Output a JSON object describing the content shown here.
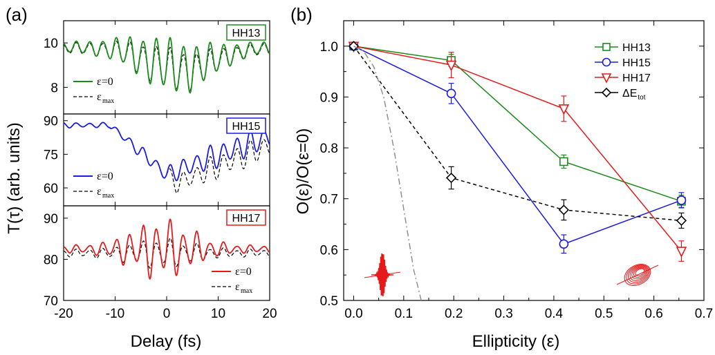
{
  "panel_a": {
    "label": "(a)",
    "ylabel": "T(τ) (arb. units)",
    "xlabel": "Delay (fs)",
    "x_ticks": [
      "-20",
      "-10",
      "0",
      "10",
      "20"
    ],
    "subpanels": [
      {
        "tag": "HH13",
        "tag_color": "#1a8a1a",
        "y_ticks": [
          "10",
          "8"
        ],
        "legend_solid": "ε=0",
        "legend_dashed": "ε",
        "legend_dashed_sub": "max"
      },
      {
        "tag": "HH15",
        "tag_color": "#1a1ae6",
        "y_ticks": [
          "90",
          "75",
          "60"
        ],
        "legend_solid": "ε=0",
        "legend_dashed": "ε",
        "legend_dashed_sub": "max"
      },
      {
        "tag": "HH17",
        "tag_color": "#e61a1a",
        "y_ticks": [
          "90",
          "80",
          "70"
        ],
        "legend_solid": "ε=0",
        "legend_dashed": "ε",
        "legend_dashed_sub": "max"
      }
    ]
  },
  "panel_b": {
    "label": "(b)",
    "ylabel": "O(ε)/O(ε=0)",
    "xlabel": "Ellipticity (ε)",
    "legend": [
      {
        "name": "HH13",
        "marker": "square",
        "color": "#1a8a1a"
      },
      {
        "name": "HH15",
        "marker": "circle",
        "color": "#1a1ae6"
      },
      {
        "name": "HH17",
        "marker": "triangle",
        "color": "#e61a1a"
      },
      {
        "name": "ΔE",
        "sub": "tot",
        "marker": "diamond",
        "color": "#000000"
      }
    ]
  },
  "chart_data": [
    {
      "type": "line",
      "panel": "(a) HH13",
      "xlabel": "Delay (fs)",
      "ylabel": "T(τ) (arb. units)",
      "xlim": [
        -20,
        20
      ],
      "ylim": [
        6.8,
        11.0
      ],
      "series": [
        {
          "name": "ε=0",
          "color": "#1a8a1a",
          "style": "solid",
          "baseline": 9.8,
          "dip_depth": 0.9,
          "dip_center": 3,
          "dip_width": 9,
          "oscillation_amplitude_max": 1.3,
          "oscillation_period_fs": 2.6
        },
        {
          "name": "εmax",
          "color": "#000000",
          "style": "dashed",
          "baseline": 9.75,
          "dip_depth": 1.0,
          "dip_center": 3,
          "dip_width": 9,
          "oscillation_amplitude_max": 1.0,
          "oscillation_period_fs": 2.6
        }
      ]
    },
    {
      "type": "line",
      "panel": "(a) HH15",
      "xlabel": "Delay (fs)",
      "ylabel": "T(τ) (arb. units)",
      "xlim": [
        -20,
        20
      ],
      "ylim": [
        52,
        93
      ],
      "series": [
        {
          "name": "ε=0",
          "color": "#1a1ae6",
          "style": "solid",
          "start": 88,
          "minimum": 66,
          "minimum_at": 0,
          "end": 83,
          "oscillation_amplitude_max": 6,
          "oscillation_period_fs": 2.6
        },
        {
          "name": "εmax",
          "color": "#000000",
          "style": "dashed",
          "start": 88,
          "minimum": 62,
          "minimum_at": 2,
          "end": 79,
          "oscillation_amplitude_max": 6,
          "oscillation_period_fs": 2.6
        }
      ]
    },
    {
      "type": "line",
      "panel": "(a) HH17",
      "xlabel": "Delay (fs)",
      "ylabel": "T(τ) (arb. units)",
      "xlim": [
        -20,
        20
      ],
      "ylim": [
        70,
        93
      ],
      "series": [
        {
          "name": "ε=0",
          "color": "#e61a1a",
          "style": "solid",
          "baseline": 82.5,
          "oscillation_amplitude_max": 8,
          "oscillation_period_fs": 2.6
        },
        {
          "name": "εmax",
          "color": "#000000",
          "style": "dashed",
          "baseline": 81.5,
          "oscillation_amplitude_max": 4,
          "oscillation_period_fs": 2.6
        }
      ]
    },
    {
      "type": "line",
      "panel": "(b)",
      "xlabel": "Ellipticity (ε)",
      "ylabel": "O(ε)/O(ε=0)",
      "xlim": [
        -0.02,
        0.7
      ],
      "ylim": [
        0.5,
        1.05
      ],
      "x_ticks": [
        0.0,
        0.1,
        0.2,
        0.3,
        0.4,
        0.5,
        0.6,
        0.7
      ],
      "y_ticks": [
        0.5,
        0.6,
        0.7,
        0.8,
        0.9,
        1.0
      ],
      "series": [
        {
          "name": "HH13",
          "color": "#1a8a1a",
          "marker": "square",
          "style": "solid",
          "x": [
            0,
            0.195,
            0.42,
            0.655
          ],
          "y": [
            1.0,
            0.972,
            0.773,
            0.695
          ],
          "err": [
            0,
            0.012,
            0.013,
            0.012
          ]
        },
        {
          "name": "HH15",
          "color": "#1a1ae6",
          "marker": "circle",
          "style": "solid",
          "x": [
            0,
            0.195,
            0.42,
            0.655
          ],
          "y": [
            1.0,
            0.907,
            0.611,
            0.697
          ],
          "err": [
            0,
            0.02,
            0.018,
            0.015
          ]
        },
        {
          "name": "HH17",
          "color": "#e61a1a",
          "marker": "triangle",
          "style": "solid",
          "x": [
            0,
            0.195,
            0.42,
            0.655
          ],
          "y": [
            1.0,
            0.963,
            0.877,
            0.597
          ],
          "err": [
            0,
            0.025,
            0.025,
            0.02
          ]
        },
        {
          "name": "ΔEtot",
          "color": "#000000",
          "marker": "diamond",
          "style": "dashed",
          "x": [
            0,
            0.195,
            0.42,
            0.655
          ],
          "y": [
            1.0,
            0.741,
            0.678,
            0.657
          ],
          "err": [
            0,
            0.022,
            0.02,
            0.015
          ]
        },
        {
          "name": "",
          "color": "#909090",
          "marker": "none",
          "style": "dashdot",
          "x": [
            0.0,
            0.02,
            0.04,
            0.06,
            0.08,
            0.1,
            0.12,
            0.135
          ],
          "y": [
            1.0,
            0.99,
            0.96,
            0.9,
            0.8,
            0.68,
            0.56,
            0.5
          ]
        }
      ]
    }
  ]
}
